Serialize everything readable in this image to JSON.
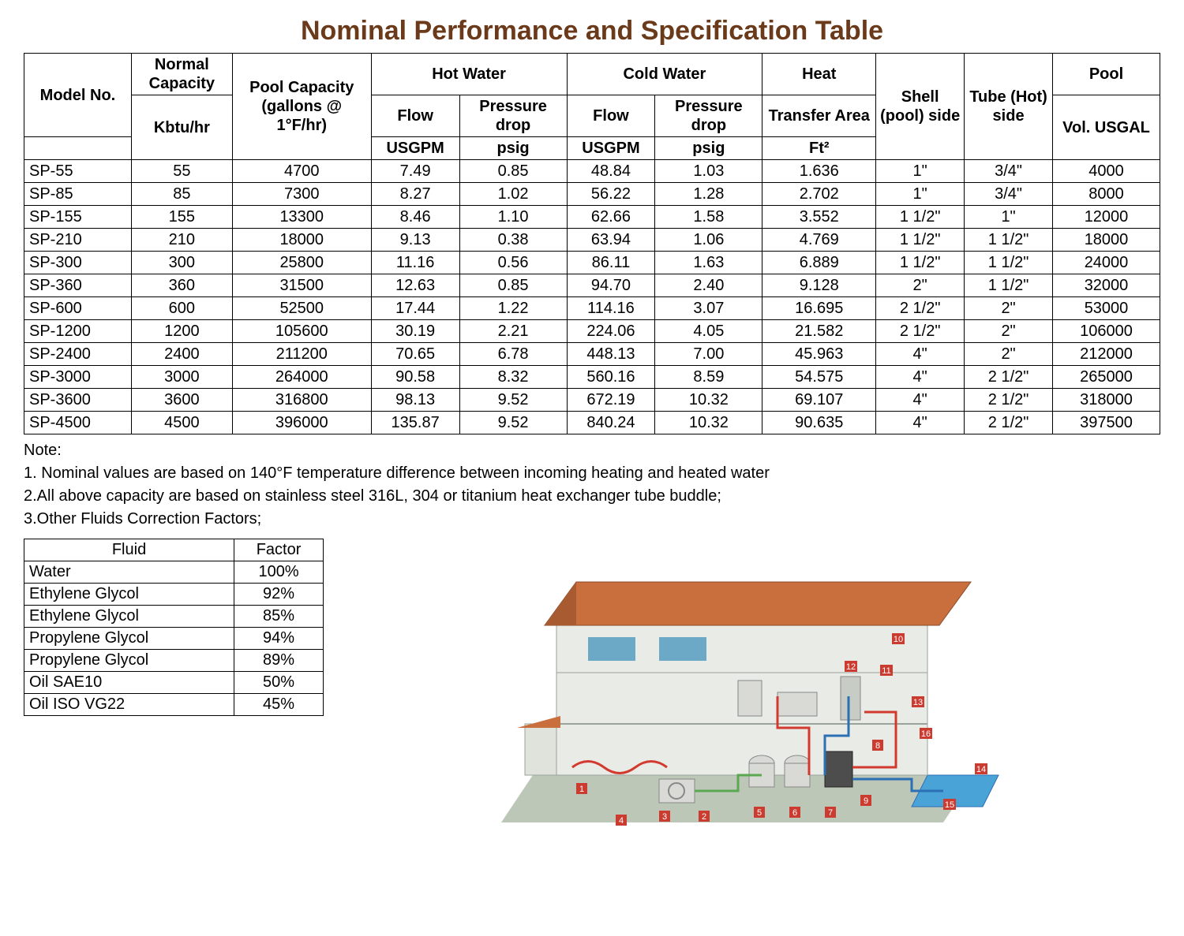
{
  "title": "Nominal Performance and Specification Table",
  "colors": {
    "title": "#6b3a1a",
    "border": "#000000",
    "background": "#ffffff",
    "house_roof": "#c96f3e",
    "house_wall": "#e8ebe6",
    "house_ground": "#bcc7b8",
    "house_pool": "#4aa3d6",
    "pipe_hot": "#d33a2f",
    "pipe_cold": "#2b6fb5",
    "pipe_green": "#5aa84f",
    "window": "#6ca9c7",
    "tank": "#d9dad5",
    "label_red": "#cc3b2f"
  },
  "spec_table": {
    "header_groups": {
      "model": "Model No.",
      "normal_capacity": "Normal Capacity",
      "normal_capacity_unit": "Kbtu/hr",
      "pool_capacity": "Pool Capacity (gallons @ 1°F/hr)",
      "hot_water": "Hot Water",
      "cold_water": "Cold Water",
      "heat": "Heat",
      "heat_sub": "Transfer Area",
      "heat_unit": "Ft²",
      "shell": "Shell (pool) side",
      "tube": "Tube (Hot) side",
      "pool": "Pool",
      "pool_sub": "Vol. USGAL",
      "flow": "Flow",
      "pressure_drop": "Pressure drop",
      "usgpm": "USGPM",
      "psig": "psig"
    },
    "col_widths_pct": [
      8.5,
      8,
      11,
      7,
      8.5,
      7,
      8.5,
      9,
      7,
      7,
      8.5
    ],
    "rows": [
      {
        "model": "SP-55",
        "cap": "55",
        "pool_cap": "4700",
        "hf": "7.49",
        "hp": "0.85",
        "cf": "48.84",
        "cp": "1.03",
        "area": "1.636",
        "shell": "1\"",
        "tube": "3/4\"",
        "pool": "4000"
      },
      {
        "model": "SP-85",
        "cap": "85",
        "pool_cap": "7300",
        "hf": "8.27",
        "hp": "1.02",
        "cf": "56.22",
        "cp": "1.28",
        "area": "2.702",
        "shell": "1\"",
        "tube": "3/4\"",
        "pool": "8000"
      },
      {
        "model": "SP-155",
        "cap": "155",
        "pool_cap": "13300",
        "hf": "8.46",
        "hp": "1.10",
        "cf": "62.66",
        "cp": "1.58",
        "area": "3.552",
        "shell": "1 1/2\"",
        "tube": "1\"",
        "pool": "12000"
      },
      {
        "model": "SP-210",
        "cap": "210",
        "pool_cap": "18000",
        "hf": "9.13",
        "hp": "0.38",
        "cf": "63.94",
        "cp": "1.06",
        "area": "4.769",
        "shell": "1 1/2\"",
        "tube": "1 1/2\"",
        "pool": "18000"
      },
      {
        "model": "SP-300",
        "cap": "300",
        "pool_cap": "25800",
        "hf": "11.16",
        "hp": "0.56",
        "cf": "86.11",
        "cp": "1.63",
        "area": "6.889",
        "shell": "1 1/2\"",
        "tube": "1 1/2\"",
        "pool": "24000"
      },
      {
        "model": "SP-360",
        "cap": "360",
        "pool_cap": "31500",
        "hf": "12.63",
        "hp": "0.85",
        "cf": "94.70",
        "cp": "2.40",
        "area": "9.128",
        "shell": "2\"",
        "tube": "1 1/2\"",
        "pool": "32000"
      },
      {
        "model": "SP-600",
        "cap": "600",
        "pool_cap": "52500",
        "hf": "17.44",
        "hp": "1.22",
        "cf": "114.16",
        "cp": "3.07",
        "area": "16.695",
        "shell": "2 1/2\"",
        "tube": "2\"",
        "pool": "53000"
      },
      {
        "model": "SP-1200",
        "cap": "1200",
        "pool_cap": "105600",
        "hf": "30.19",
        "hp": "2.21",
        "cf": "224.06",
        "cp": "4.05",
        "area": "21.582",
        "shell": "2 1/2\"",
        "tube": "2\"",
        "pool": "106000"
      },
      {
        "model": "SP-2400",
        "cap": "2400",
        "pool_cap": "211200",
        "hf": "70.65",
        "hp": "6.78",
        "cf": "448.13",
        "cp": "7.00",
        "area": "45.963",
        "shell": "4\"",
        "tube": "2\"",
        "pool": "212000"
      },
      {
        "model": "SP-3000",
        "cap": "3000",
        "pool_cap": "264000",
        "hf": "90.58",
        "hp": "8.32",
        "cf": "560.16",
        "cp": "8.59",
        "area": "54.575",
        "shell": "4\"",
        "tube": "2 1/2\"",
        "pool": "265000"
      },
      {
        "model": "SP-3600",
        "cap": "3600",
        "pool_cap": "316800",
        "hf": "98.13",
        "hp": "9.52",
        "cf": "672.19",
        "cp": "10.32",
        "area": "69.107",
        "shell": "4\"",
        "tube": "2 1/2\"",
        "pool": "318000"
      },
      {
        "model": "SP-4500",
        "cap": "4500",
        "pool_cap": "396000",
        "hf": "135.87",
        "hp": "9.52",
        "cf": "840.24",
        "cp": "10.32",
        "area": "90.635",
        "shell": "4\"",
        "tube": "2 1/2\"",
        "pool": "397500"
      }
    ]
  },
  "notes": {
    "heading": "Note:",
    "items": [
      "1. Nominal values are based on 140°F temperature difference between incoming heating and heated water",
      "2.All above capacity are based on stainless steel 316L, 304 or titanium heat exchanger tube buddle;",
      "3.Other Fluids Correction Factors;"
    ]
  },
  "factor_table": {
    "columns": [
      "Fluid",
      "Factor"
    ],
    "rows": [
      [
        "Water",
        "100%"
      ],
      [
        "Ethylene Glycol",
        "92%"
      ],
      [
        "Ethylene Glycol",
        "85%"
      ],
      [
        "Propylene Glycol",
        "94%"
      ],
      [
        "Propylene Glycol",
        "89%"
      ],
      [
        "Oil SAE10",
        "50%"
      ],
      [
        "Oil ISO VG22",
        "45%"
      ]
    ]
  },
  "diagram": {
    "type": "infographic",
    "description": "Cutaway isometric house with two floors, rooftop, radiant floor heating loops, boiler/tanks in basement, outdoor heat pump unit, and swimming pool connected by red (hot), blue (cold) and green piping. Small red numbered labels mark components.",
    "label_numbers": [
      "1",
      "2",
      "3",
      "4",
      "5",
      "6",
      "7",
      "8",
      "9",
      "10",
      "11",
      "12",
      "13",
      "14",
      "15",
      "16"
    ]
  }
}
